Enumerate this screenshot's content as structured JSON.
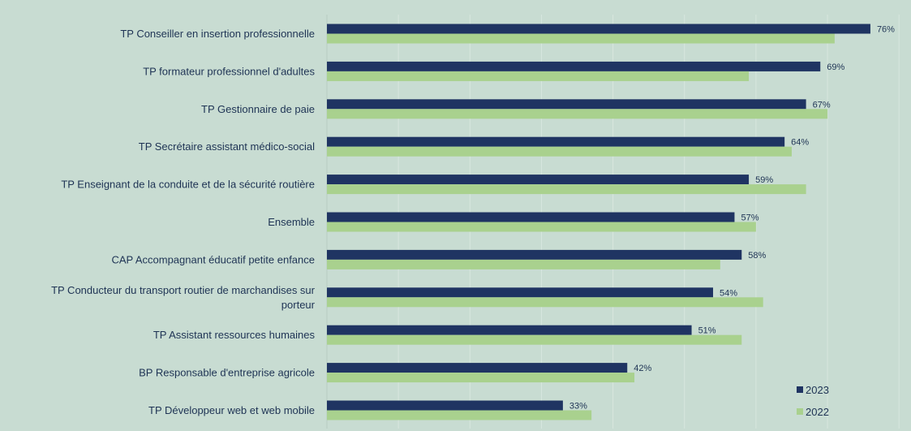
{
  "chart_data": {
    "type": "bar",
    "orientation": "horizontal",
    "categories": [
      "TP Conseiller en insertion professionnelle",
      "TP formateur professionnel d'adultes",
      "TP Gestionnaire de paie",
      "TP Secrétaire assistant médico-social",
      "TP Enseignant de la conduite et de la sécurité routière",
      "Ensemble",
      "CAP Accompagnant éducatif petite enfance",
      "TP Conducteur du transport routier de marchandises sur porteur",
      "TP Assistant ressources humaines",
      "BP Responsable d'entreprise agricole",
      "TP Développeur web et web mobile"
    ],
    "category_lines": [
      [
        "TP Conseiller en insertion professionnelle"
      ],
      [
        "TP formateur professionnel d'adultes"
      ],
      [
        "TP Gestionnaire de paie"
      ],
      [
        "TP Secrétaire assistant médico-social"
      ],
      [
        "TP Enseignant de la conduite et de la sécurité routière"
      ],
      [
        "Ensemble"
      ],
      [
        "CAP Accompagnant éducatif petite enfance"
      ],
      [
        "TP Conducteur du transport routier de marchandises sur",
        "porteur"
      ],
      [
        "TP Assistant ressources humaines"
      ],
      [
        "BP Responsable d'entreprise agricole"
      ],
      [
        "TP Développeur web et web mobile"
      ]
    ],
    "series": [
      {
        "name": "2023",
        "color": "#1f3462",
        "values": [
          76,
          69,
          67,
          64,
          59,
          57,
          58,
          54,
          51,
          42,
          33
        ],
        "labels": [
          "76%",
          "69%",
          "67%",
          "64%",
          "59%",
          "57%",
          "58%",
          "54%",
          "51%",
          "42%",
          "33%"
        ]
      },
      {
        "name": "2022",
        "color": "#a9d18e",
        "values": [
          71,
          59,
          70,
          65,
          67,
          60,
          55,
          61,
          58,
          43,
          37
        ]
      }
    ],
    "xlim": [
      0,
      80
    ],
    "grid": true,
    "legend_position": "bottom-right"
  }
}
